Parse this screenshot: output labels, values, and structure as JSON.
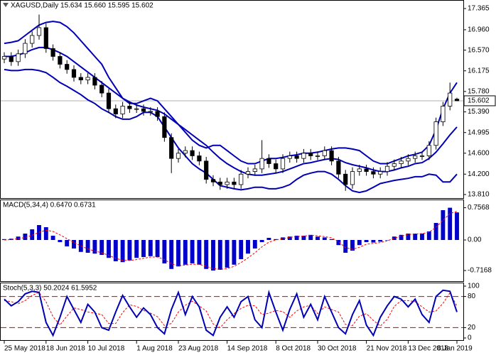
{
  "chart_data": [
    {
      "type": "candlestick",
      "title": "XAGUSD,Daily  15.634 15.660 15.595 15.602",
      "open": [
        16.4,
        16.45,
        16.35,
        16.5,
        16.7,
        16.85,
        17.0,
        16.6,
        16.45,
        16.3,
        16.2,
        16.05,
        16.0,
        16.05,
        15.9,
        15.75,
        15.45,
        15.35,
        15.5,
        15.45,
        15.45,
        15.4,
        15.4,
        15.3,
        14.9,
        14.5,
        14.6,
        14.65,
        14.55,
        14.45,
        14.1,
        14.05,
        14.0,
        14.05,
        14.0,
        14.2,
        14.25,
        14.3,
        14.5,
        14.4,
        14.3,
        14.5,
        14.55,
        14.5,
        14.6,
        14.55,
        14.55,
        14.65,
        14.45,
        14.2,
        14.0,
        14.25,
        14.3,
        14.25,
        14.2,
        14.25,
        14.35,
        14.4,
        14.45,
        14.5,
        14.55,
        14.55,
        14.75,
        15.2,
        15.5,
        15.634
      ],
      "high": [
        16.53,
        16.53,
        16.58,
        16.78,
        16.93,
        17.25,
        17.08,
        16.68,
        16.53,
        16.38,
        16.28,
        16.13,
        16.13,
        16.13,
        15.98,
        15.83,
        15.53,
        15.58,
        15.58,
        15.53,
        15.53,
        15.48,
        15.48,
        15.38,
        14.98,
        14.68,
        14.73,
        14.73,
        14.63,
        14.53,
        14.18,
        14.13,
        14.13,
        14.13,
        14.28,
        14.33,
        14.38,
        14.85,
        14.58,
        14.48,
        14.58,
        14.63,
        14.63,
        14.68,
        14.68,
        14.63,
        14.73,
        14.73,
        14.53,
        14.28,
        14.33,
        14.38,
        14.38,
        14.33,
        14.33,
        14.43,
        14.48,
        14.53,
        14.58,
        14.63,
        14.63,
        14.83,
        15.28,
        15.58,
        15.95,
        15.66
      ],
      "low": [
        16.32,
        16.27,
        16.27,
        16.42,
        16.62,
        16.77,
        16.52,
        16.37,
        16.22,
        16.12,
        15.97,
        15.92,
        15.92,
        15.82,
        15.67,
        15.37,
        15.27,
        15.27,
        15.37,
        15.37,
        15.32,
        15.32,
        15.22,
        14.82,
        14.22,
        14.42,
        14.52,
        14.47,
        14.37,
        14.02,
        13.97,
        13.9,
        13.92,
        13.92,
        13.92,
        14.12,
        14.17,
        14.22,
        14.32,
        14.22,
        14.22,
        14.42,
        14.42,
        14.42,
        14.47,
        14.47,
        14.47,
        14.37,
        14.12,
        13.88,
        13.92,
        14.17,
        14.17,
        14.12,
        14.12,
        14.17,
        14.27,
        14.32,
        14.37,
        14.42,
        14.47,
        14.47,
        14.67,
        15.12,
        15.42,
        15.595
      ],
      "close": [
        16.45,
        16.35,
        16.5,
        16.7,
        16.85,
        17.0,
        16.6,
        16.45,
        16.3,
        16.2,
        16.05,
        16.0,
        16.05,
        15.9,
        15.75,
        15.45,
        15.35,
        15.5,
        15.45,
        15.45,
        15.4,
        15.4,
        15.3,
        14.9,
        14.5,
        14.6,
        14.65,
        14.55,
        14.45,
        14.1,
        14.05,
        14.0,
        14.05,
        14.0,
        14.2,
        14.25,
        14.3,
        14.5,
        14.4,
        14.3,
        14.5,
        14.55,
        14.5,
        14.6,
        14.55,
        14.55,
        14.65,
        14.45,
        14.2,
        14.0,
        14.25,
        14.3,
        14.25,
        14.2,
        14.25,
        14.35,
        14.4,
        14.45,
        14.5,
        14.55,
        14.55,
        14.75,
        15.2,
        15.5,
        15.75,
        15.602
      ],
      "bands": {
        "color": "#0000b4",
        "upper": [
          16.7,
          16.72,
          16.75,
          16.85,
          16.95,
          17.05,
          17.1,
          17.12,
          17.1,
          17.02,
          16.9,
          16.75,
          16.6,
          16.45,
          16.3,
          16.05,
          15.85,
          15.65,
          15.55,
          15.55,
          15.6,
          15.65,
          15.6,
          15.45,
          15.3,
          15.15,
          15.0,
          14.85,
          14.75,
          14.7,
          14.75,
          14.75,
          14.65,
          14.55,
          14.45,
          14.4,
          14.4,
          14.45,
          14.5,
          14.5,
          14.52,
          14.55,
          14.57,
          14.6,
          14.6,
          14.62,
          14.65,
          14.68,
          14.7,
          14.7,
          14.68,
          14.65,
          14.55,
          14.45,
          14.4,
          14.4,
          14.45,
          14.5,
          14.55,
          14.58,
          14.62,
          14.75,
          15.05,
          15.45,
          15.75,
          15.95
        ],
        "middle": [
          16.45,
          16.45,
          16.48,
          16.52,
          16.58,
          16.62,
          16.62,
          16.58,
          16.52,
          16.45,
          16.35,
          16.25,
          16.15,
          16.05,
          15.95,
          15.85,
          15.75,
          15.65,
          15.58,
          15.52,
          15.48,
          15.45,
          15.42,
          15.35,
          15.25,
          15.15,
          15.05,
          14.95,
          14.85,
          14.75,
          14.62,
          14.5,
          14.4,
          14.32,
          14.25,
          14.2,
          14.18,
          14.18,
          14.2,
          14.22,
          14.25,
          14.3,
          14.35,
          14.4,
          14.42,
          14.45,
          14.48,
          14.5,
          14.48,
          14.42,
          14.38,
          14.35,
          14.32,
          14.28,
          14.25,
          14.25,
          14.28,
          14.32,
          14.35,
          14.4,
          14.42,
          14.5,
          14.62,
          14.78,
          14.95,
          15.1
        ],
        "lower": [
          16.2,
          16.18,
          16.18,
          16.2,
          16.2,
          16.18,
          16.14,
          16.05,
          15.95,
          15.88,
          15.8,
          15.72,
          15.62,
          15.55,
          15.45,
          15.38,
          15.3,
          15.25,
          15.25,
          15.3,
          15.38,
          15.38,
          15.3,
          15.1,
          14.9,
          14.7,
          14.55,
          14.4,
          14.3,
          14.22,
          14.1,
          13.98,
          13.95,
          13.92,
          13.9,
          13.92,
          13.95,
          13.95,
          13.92,
          13.92,
          13.95,
          14.0,
          14.1,
          14.18,
          14.22,
          14.25,
          14.25,
          14.2,
          14.1,
          13.98,
          13.88,
          13.85,
          13.88,
          13.95,
          14.02,
          14.05,
          14.08,
          14.1,
          14.12,
          14.15,
          14.15,
          14.2,
          14.18,
          14.05,
          14.05,
          14.2
        ]
      },
      "price_line": {
        "value": 15.602,
        "label": "15.602"
      },
      "ylim": [
        13.81,
        17.42
      ],
      "yticks": [
        17.365,
        {
          "value": 16.96,
          "label": "16.960"
        },
        {
          "value": 16.57,
          "label": "16.570"
        },
        16.175,
        {
          "value": 15.78,
          "label": "15.780"
        },
        {
          "value": 15.39,
          "label": "15.390"
        },
        14.995,
        {
          "value": 14.6,
          "label": "14.600"
        },
        {
          "value": 14.2,
          "label": "14.200"
        },
        {
          "value": 13.81,
          "label": "13.810"
        }
      ]
    },
    {
      "type": "macd",
      "title": "MACD(5,34,4) 0.6470 0.6731",
      "histogram": [
        0.02,
        0.03,
        0.08,
        0.15,
        0.25,
        0.35,
        0.3,
        0.1,
        -0.05,
        -0.15,
        -0.2,
        -0.28,
        -0.3,
        -0.32,
        -0.35,
        -0.42,
        -0.5,
        -0.52,
        -0.48,
        -0.42,
        -0.4,
        -0.38,
        -0.4,
        -0.55,
        -0.68,
        -0.62,
        -0.58,
        -0.55,
        -0.58,
        -0.68,
        -0.7168,
        -0.7,
        -0.65,
        -0.58,
        -0.45,
        -0.32,
        -0.2,
        -0.05,
        0.05,
        0.02,
        0.06,
        0.08,
        0.1,
        0.1,
        0.12,
        0.08,
        0.06,
        0.02,
        -0.12,
        -0.3,
        -0.25,
        -0.12,
        -0.05,
        -0.06,
        -0.04,
        0.0,
        0.08,
        0.12,
        0.15,
        0.15,
        0.15,
        0.2,
        0.4,
        0.7,
        0.7568,
        0.647
      ],
      "signal": [
        0.0,
        0.01,
        0.03,
        0.06,
        0.11,
        0.18,
        0.23,
        0.2,
        0.12,
        0.03,
        -0.06,
        -0.14,
        -0.21,
        -0.26,
        -0.3,
        -0.36,
        -0.43,
        -0.48,
        -0.48,
        -0.46,
        -0.43,
        -0.4,
        -0.4,
        -0.46,
        -0.56,
        -0.6,
        -0.59,
        -0.57,
        -0.57,
        -0.62,
        -0.67,
        -0.69,
        -0.67,
        -0.62,
        -0.53,
        -0.42,
        -0.3,
        -0.16,
        -0.05,
        0.0,
        0.03,
        0.06,
        0.08,
        0.09,
        0.11,
        0.1,
        0.08,
        0.05,
        -0.04,
        -0.18,
        -0.22,
        -0.17,
        -0.1,
        -0.08,
        -0.06,
        -0.02,
        0.04,
        0.09,
        0.13,
        0.14,
        0.15,
        0.18,
        0.3,
        0.46,
        0.62,
        0.6731
      ],
      "color": "#0000cc",
      "signal_color": "#ff0000",
      "ylim": [
        -0.9,
        0.8
      ],
      "yticks": [
        0.7568,
        {
          "value": 0,
          "label": "0.00"
        },
        -0.7168
      ]
    },
    {
      "type": "stochastic",
      "title": "Stoch(5,3,3) 50.2024 61.5952",
      "main": [
        75,
        62,
        70,
        85,
        90,
        88,
        30,
        5,
        40,
        80,
        55,
        30,
        65,
        50,
        20,
        15,
        50,
        82,
        60,
        40,
        58,
        45,
        20,
        8,
        55,
        88,
        45,
        80,
        60,
        15,
        5,
        40,
        60,
        40,
        70,
        80,
        35,
        20,
        88,
        50,
        15,
        55,
        85,
        40,
        65,
        35,
        80,
        50,
        20,
        8,
        45,
        72,
        25,
        5,
        40,
        62,
        80,
        75,
        60,
        75,
        45,
        30,
        80,
        92,
        90,
        50.2024
      ],
      "signal": [
        72,
        70,
        66,
        72,
        82,
        88,
        70,
        41,
        25,
        42,
        58,
        55,
        50,
        48,
        45,
        28,
        28,
        49,
        64,
        61,
        53,
        48,
        41,
        24,
        28,
        50,
        63,
        71,
        62,
        52,
        27,
        20,
        35,
        47,
        57,
        63,
        62,
        45,
        48,
        53,
        51,
        40,
        52,
        60,
        63,
        47,
        60,
        55,
        50,
        26,
        24,
        42,
        47,
        34,
        23,
        36,
        61,
        72,
        72,
        70,
        60,
        50,
        52,
        67,
        87,
        61.5952
      ],
      "color": "#0000b4",
      "signal_color": "#ff0000",
      "levels": [
        80,
        20
      ],
      "ylim": [
        0,
        100
      ],
      "yticks": [
        100,
        80,
        20,
        0
      ],
      "xlim": [
        0,
        65
      ],
      "xticks": [
        {
          "value": 0,
          "label": "25 May 2018"
        },
        {
          "value": 6,
          "label": "18 Jun 2018"
        },
        {
          "value": 12,
          "label": "10 Jul 2018"
        },
        {
          "value": 19,
          "label": "1 Aug 2018"
        },
        {
          "value": 25,
          "label": "23 Aug 2018"
        },
        {
          "value": 32,
          "label": "14 Sep 2018"
        },
        {
          "value": 39,
          "label": "8 Oct 2018"
        },
        {
          "value": 45,
          "label": "30 Oct 2018"
        },
        {
          "value": 52,
          "label": "21 Nov 2018"
        },
        {
          "value": 58,
          "label": "13 Dec 2018"
        },
        {
          "value": 65,
          "label": "8 Jan 2019"
        }
      ]
    }
  ]
}
